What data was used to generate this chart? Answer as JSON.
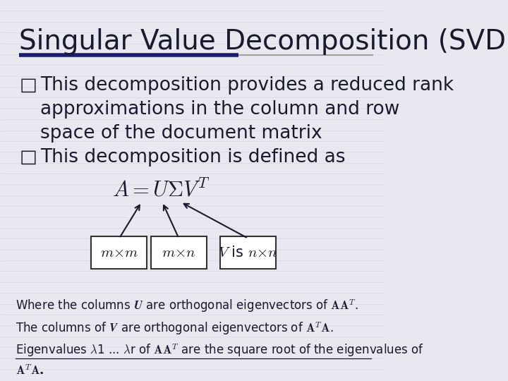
{
  "background_color": "#e8e8f0",
  "title": "Singular Value Decomposition (SVD)",
  "title_color": "#1a1a2e",
  "title_fontsize": 28,
  "underline_color_left": "#1a1a6e",
  "bullet_color": "#1a1a2e",
  "bullet_fontsize": 19,
  "bullet1": "This decomposition provides a reduced rank\napproximations in the column and row\nspace of the document matrix",
  "bullet2": "This decomposition is defined as",
  "formula": "$A = U\\Sigma V^T$",
  "box1": "$m{\\times}m$",
  "box2": "$m{\\times}n$",
  "box3": "$V$ is $n{\\times}n$",
  "note_fontsize": 12,
  "box_color": "#ffffff",
  "box_border": "#333333",
  "arrow_color": "#1a1a2e"
}
